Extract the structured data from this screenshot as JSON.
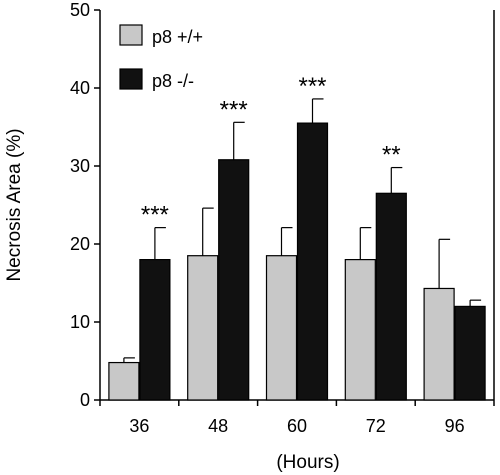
{
  "chart_data": {
    "type": "bar",
    "categories": [
      "36",
      "48",
      "60",
      "72",
      "96"
    ],
    "series": [
      {
        "name": "p8 +/+",
        "values": [
          4.8,
          18.5,
          18.5,
          18.0,
          14.3
        ],
        "errors": [
          0.6,
          6.1,
          3.6,
          4.1,
          6.3
        ],
        "color": "#c8c8c8"
      },
      {
        "name": "p8 -/-",
        "values": [
          18.0,
          30.8,
          35.5,
          26.5,
          12.0
        ],
        "errors": [
          4.1,
          4.8,
          3.1,
          3.3,
          0.8
        ],
        "color": "#111111"
      }
    ],
    "significance": [
      "***",
      "***",
      "***",
      "**",
      ""
    ],
    "ylim": [
      0,
      50
    ],
    "yticks": [
      "0",
      "10",
      "20",
      "30",
      "40",
      "50"
    ],
    "xlabel": "(Hours)",
    "ylabel": "Necrosis Area (%)",
    "legend_position": "top-left"
  }
}
